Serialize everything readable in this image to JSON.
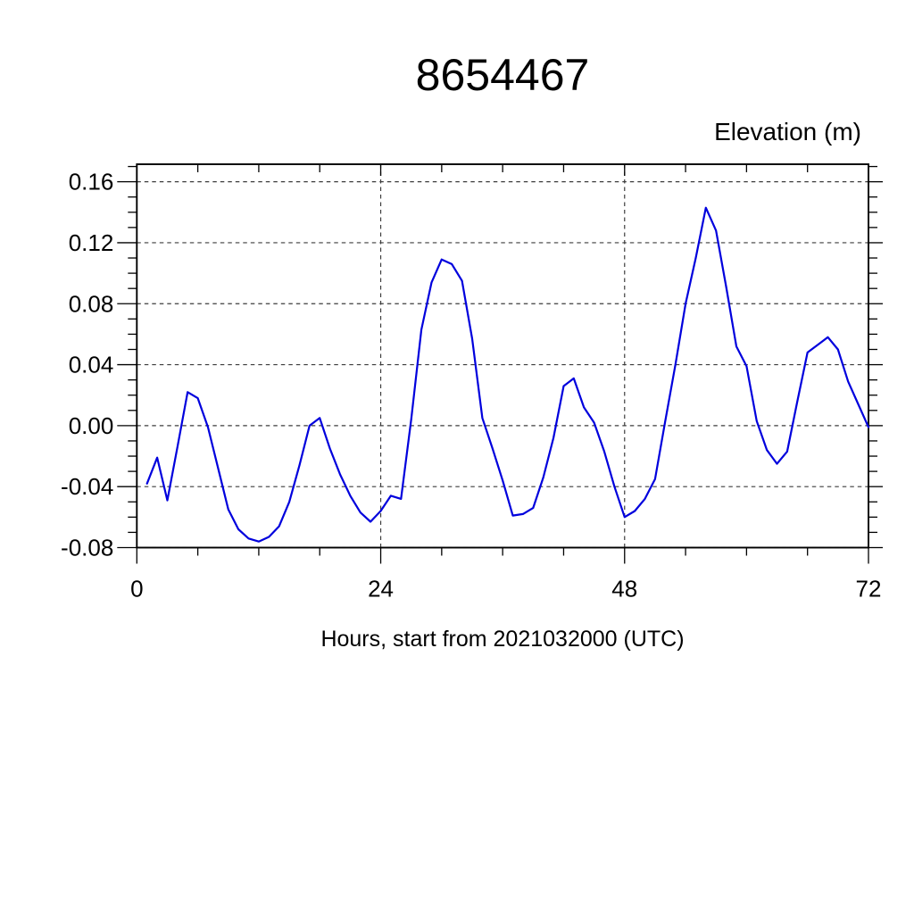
{
  "figure": {
    "background": "#ffffff"
  },
  "chart_data": {
    "type": "line",
    "title": "8654467",
    "ylabel": "Elevation (m)",
    "xlabel": "Hours, start from 2021032000 (UTC)",
    "xlim": [
      0,
      72
    ],
    "ylim": [
      -0.08,
      0.1715
    ],
    "grid": "dashed lines at major ticks; vertical at x=24,48; horizontal every 0.04",
    "legend": "none",
    "x_ticks": [
      {
        "value": 0,
        "label": "0"
      },
      {
        "value": 24,
        "label": "24"
      },
      {
        "value": 48,
        "label": "48"
      },
      {
        "value": 72,
        "label": "72"
      }
    ],
    "y_ticks": [
      {
        "value": 0.16,
        "label": "0.16"
      },
      {
        "value": 0.12,
        "label": "0.12"
      },
      {
        "value": 0.08,
        "label": "0.08"
      },
      {
        "value": 0.04,
        "label": "0.04"
      },
      {
        "value": 0.0,
        "label": "0.00"
      },
      {
        "value": -0.04,
        "label": "-0.04"
      },
      {
        "value": -0.08,
        "label": "-0.08"
      }
    ],
    "x_minor_step": 6,
    "y_minor_step": 0.01,
    "grid_x_values": [
      24,
      48
    ],
    "colors": {
      "line": "#0000dd",
      "grid": "#3c3c3c",
      "axis": "#000000",
      "text": "#000000"
    },
    "series": [
      {
        "name": "elevation_m",
        "x": [
          1,
          2,
          3,
          4,
          5,
          6,
          7,
          8,
          9,
          10,
          11,
          12,
          13,
          14,
          15,
          16,
          17,
          18,
          19,
          20,
          21,
          22,
          23,
          24,
          25,
          26,
          27,
          28,
          29,
          30,
          31,
          32,
          33,
          34,
          35,
          36,
          37,
          38,
          39,
          40,
          41,
          42,
          43,
          44,
          45,
          46,
          47,
          48,
          49,
          50,
          51,
          52,
          53,
          54,
          55,
          56,
          57,
          58,
          59,
          60,
          61,
          62,
          63,
          64,
          65,
          66,
          67,
          68,
          69,
          70,
          71,
          72
        ],
        "y": [
          -0.038,
          -0.021,
          -0.049,
          -0.014,
          0.022,
          0.018,
          -0.001,
          -0.028,
          -0.055,
          -0.068,
          -0.074,
          -0.076,
          -0.073,
          -0.066,
          -0.05,
          -0.026,
          0.0,
          0.005,
          -0.015,
          -0.032,
          -0.046,
          -0.057,
          -0.063,
          -0.056,
          -0.046,
          -0.048,
          0.004,
          0.063,
          0.094,
          0.109,
          0.106,
          0.095,
          0.057,
          0.005,
          -0.015,
          -0.036,
          -0.059,
          -0.058,
          -0.054,
          -0.034,
          -0.008,
          0.026,
          0.031,
          0.012,
          0.002,
          -0.017,
          -0.04,
          -0.06,
          -0.056,
          -0.048,
          -0.035,
          0.003,
          0.04,
          0.08,
          0.11,
          0.143,
          0.128,
          0.091,
          0.052,
          0.039,
          0.003,
          -0.016,
          -0.025,
          -0.017,
          0.016,
          0.048,
          0.053,
          0.058,
          0.05,
          0.029,
          0.014,
          -0.001
        ]
      }
    ]
  }
}
